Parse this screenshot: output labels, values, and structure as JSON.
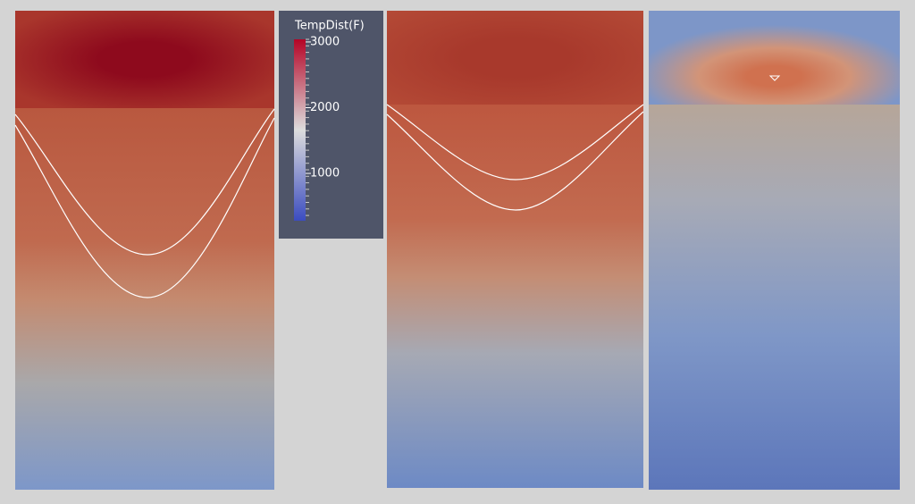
{
  "colorbar": {
    "title": "TempDist(F)",
    "range": [
      280,
      3040
    ],
    "ticks": [
      1000,
      2000,
      3000
    ]
  }
}
